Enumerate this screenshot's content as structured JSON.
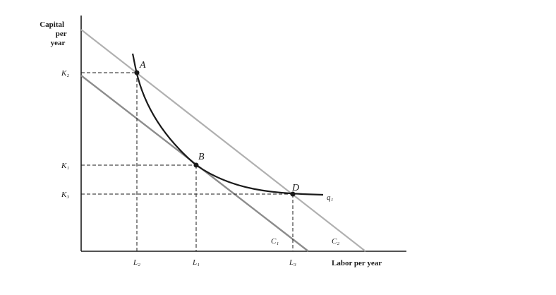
{
  "y_axis_label": [
    "Capital",
    "per",
    "year"
  ],
  "x_axis_label": "Labor per year",
  "k_ticks": {
    "k2": "K₂",
    "k1": "K₁",
    "k3": "K₃"
  },
  "l_ticks": {
    "l2": "L₂",
    "l1": "L₁",
    "l3": "L₃"
  },
  "points": {
    "a": "A",
    "b": "B",
    "d": "D"
  },
  "curves": {
    "isoquant": "q₁",
    "c1": "C₁",
    "c2": "C₂"
  },
  "colors": {
    "ink": "#1a1a1a",
    "isocost_c2": "#b0b0b0",
    "isocost_c1": "#8c8c8c"
  }
}
